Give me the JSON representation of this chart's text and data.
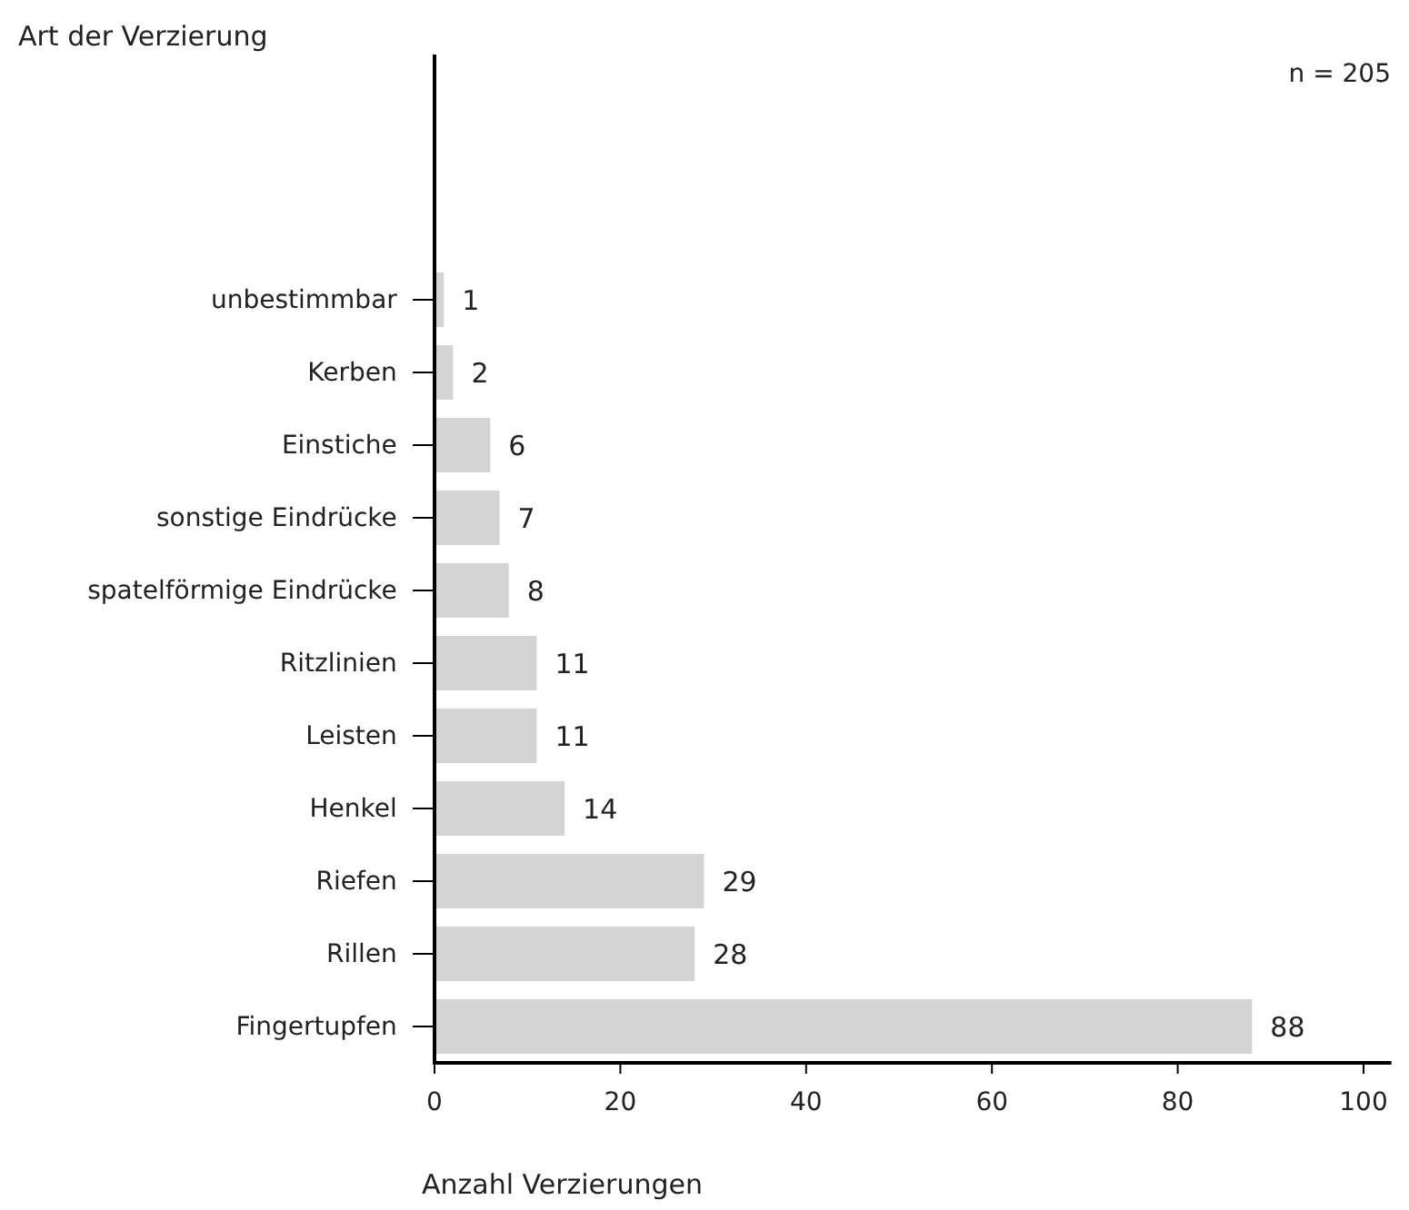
{
  "chart_data": {
    "type": "bar",
    "orientation": "horizontal",
    "title": "Art der Verzierung",
    "xlabel": "Anzahl Verzierungen",
    "annotations": [
      "n = 205"
    ],
    "categories": [
      "unbestimmbar",
      "Kerben",
      "Einstiche",
      "sonstige Eindrücke",
      "spatelförmige Eindrücke",
      "Ritzlinien",
      "Leisten",
      "Henkel",
      "Riefen",
      "Rillen",
      "Fingertupfen"
    ],
    "values": [
      1,
      2,
      6,
      7,
      8,
      11,
      11,
      14,
      29,
      28,
      88
    ],
    "color": "#d4d4d4",
    "xlim": [
      0,
      103
    ],
    "xticks": [
      0,
      20,
      40,
      60,
      80,
      100
    ],
    "data_labels": true
  }
}
